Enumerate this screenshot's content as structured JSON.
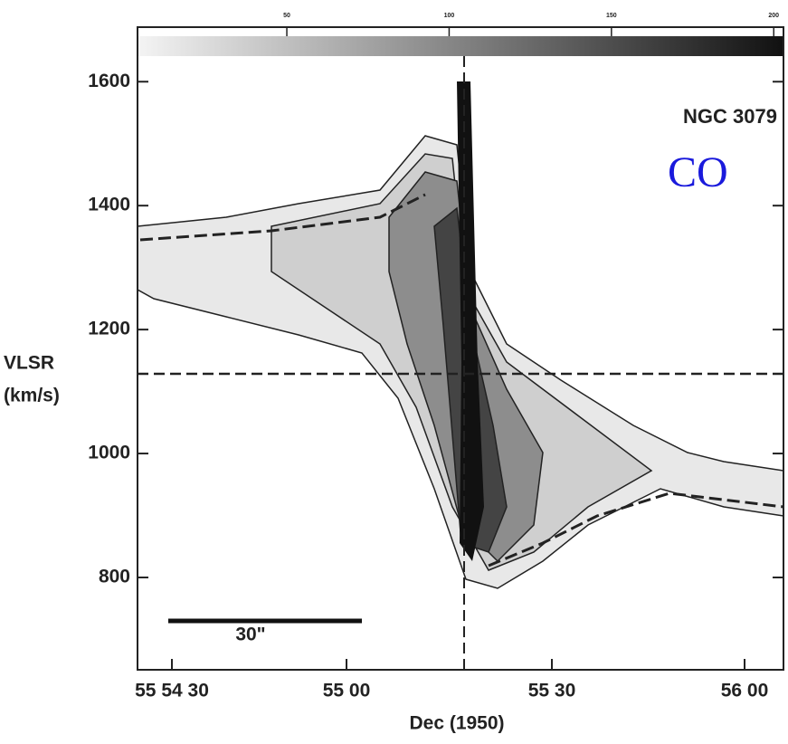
{
  "chart_data": {
    "type": "position-velocity",
    "title": "NGC 3079",
    "line_label": "CO",
    "scale_bar_label": "30\"",
    "y_label": [
      "VLSR",
      "(km/s)"
    ],
    "x_label": "Dec (1950)",
    "ylim": [
      651,
      1688
    ],
    "yticks": [
      800,
      1000,
      1200,
      1400,
      1600
    ],
    "xticks": [
      "55 54 30",
      "55 00",
      "55 30",
      "56 00"
    ],
    "colorbar_lim": [
      4,
      203
    ],
    "colorbar_ticks": [
      50,
      100,
      150,
      200
    ]
  }
}
